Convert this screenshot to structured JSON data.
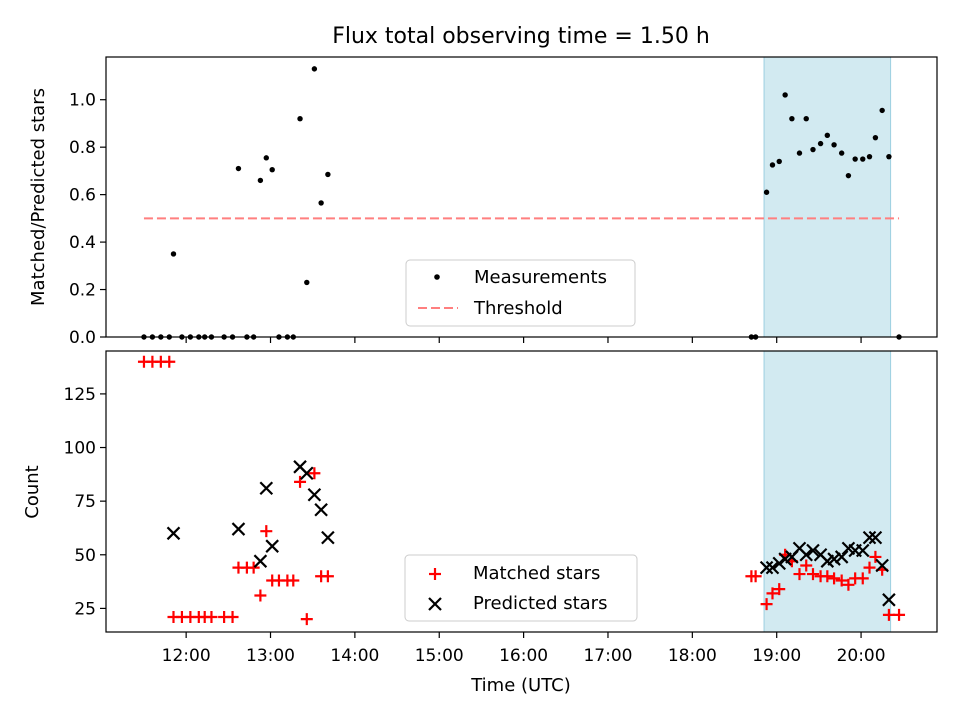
{
  "title": "Flux total observing time = 1.50 h",
  "colors": {
    "measurement": "#000000",
    "threshold": "#ff7f7f",
    "matched": "#ff0000",
    "predicted": "#000000",
    "highlight": "#add8e6"
  },
  "chart_data": [
    {
      "type": "scatter",
      "ylabel": "Matched/Predicted stars",
      "xlabel": "",
      "xlim": [
        11.05,
        20.9
      ],
      "ylim": [
        0.0,
        1.18
      ],
      "yticks": [
        0.0,
        0.2,
        0.4,
        0.6,
        0.8,
        1.0
      ],
      "ytick_labels": [
        "0.0",
        "0.2",
        "0.4",
        "0.6",
        "0.8",
        "1.0"
      ],
      "highlight_span": [
        18.85,
        20.35
      ],
      "legend": {
        "position": "lower-center",
        "entries": [
          "Measurements",
          "Threshold"
        ]
      },
      "threshold": {
        "name": "Threshold",
        "value": 0.5,
        "x_range": [
          11.5,
          20.45
        ]
      },
      "series": [
        {
          "name": "Measurements",
          "marker": "dot",
          "points": [
            [
              11.5,
              0.0
            ],
            [
              11.6,
              0.0
            ],
            [
              11.7,
              0.0
            ],
            [
              11.8,
              0.0
            ],
            [
              11.85,
              0.35
            ],
            [
              11.95,
              0.0
            ],
            [
              12.05,
              0.0
            ],
            [
              12.15,
              0.0
            ],
            [
              12.22,
              0.0
            ],
            [
              12.3,
              0.0
            ],
            [
              12.45,
              0.0
            ],
            [
              12.55,
              0.0
            ],
            [
              12.62,
              0.71
            ],
            [
              12.72,
              0.0
            ],
            [
              12.8,
              0.0
            ],
            [
              12.88,
              0.66
            ],
            [
              12.95,
              0.755
            ],
            [
              13.02,
              0.705
            ],
            [
              13.1,
              0.0
            ],
            [
              13.2,
              0.0
            ],
            [
              13.27,
              0.0
            ],
            [
              13.35,
              0.92
            ],
            [
              13.43,
              0.23
            ],
            [
              13.52,
              1.13
            ],
            [
              13.6,
              0.565
            ],
            [
              13.68,
              0.685
            ],
            [
              18.7,
              0.0
            ],
            [
              18.75,
              0.0
            ],
            [
              18.88,
              0.61
            ],
            [
              18.95,
              0.725
            ],
            [
              19.03,
              0.74
            ],
            [
              19.1,
              1.02
            ],
            [
              19.18,
              0.92
            ],
            [
              19.27,
              0.775
            ],
            [
              19.35,
              0.92
            ],
            [
              19.43,
              0.79
            ],
            [
              19.52,
              0.815
            ],
            [
              19.6,
              0.85
            ],
            [
              19.68,
              0.81
            ],
            [
              19.77,
              0.775
            ],
            [
              19.85,
              0.68
            ],
            [
              19.93,
              0.75
            ],
            [
              20.02,
              0.75
            ],
            [
              20.1,
              0.76
            ],
            [
              20.17,
              0.84
            ],
            [
              20.25,
              0.955
            ],
            [
              20.33,
              0.76
            ],
            [
              20.45,
              0.0
            ]
          ]
        }
      ]
    },
    {
      "type": "scatter",
      "ylabel": "Count",
      "xlabel": "Time (UTC)",
      "xlim": [
        11.05,
        20.9
      ],
      "ylim": [
        14,
        145
      ],
      "yticks": [
        25,
        50,
        75,
        100,
        125
      ],
      "ytick_labels": [
        "25",
        "50",
        "75",
        "100",
        "125"
      ],
      "xticks": [
        12,
        13,
        14,
        15,
        16,
        17,
        18,
        19,
        20
      ],
      "xtick_labels": [
        "12:00",
        "13:00",
        "14:00",
        "15:00",
        "16:00",
        "17:00",
        "18:00",
        "19:00",
        "20:00"
      ],
      "highlight_span": [
        18.85,
        20.35
      ],
      "legend": {
        "position": "lower-center",
        "entries": [
          "Matched stars",
          "Predicted stars"
        ]
      },
      "series": [
        {
          "name": "Matched stars",
          "marker": "plus",
          "points": [
            [
              11.5,
              140
            ],
            [
              11.6,
              140
            ],
            [
              11.7,
              140
            ],
            [
              11.8,
              140
            ],
            [
              11.85,
              21
            ],
            [
              11.95,
              21
            ],
            [
              12.05,
              21
            ],
            [
              12.15,
              21
            ],
            [
              12.22,
              21
            ],
            [
              12.3,
              21
            ],
            [
              12.45,
              21
            ],
            [
              12.55,
              21
            ],
            [
              12.62,
              44
            ],
            [
              12.72,
              44
            ],
            [
              12.8,
              44
            ],
            [
              12.88,
              31
            ],
            [
              12.95,
              61
            ],
            [
              13.02,
              38
            ],
            [
              13.1,
              38
            ],
            [
              13.2,
              38
            ],
            [
              13.27,
              38
            ],
            [
              13.35,
              84
            ],
            [
              13.43,
              20
            ],
            [
              13.52,
              88
            ],
            [
              13.6,
              40
            ],
            [
              13.68,
              40
            ],
            [
              18.7,
              40
            ],
            [
              18.75,
              40
            ],
            [
              18.88,
              27
            ],
            [
              18.95,
              32
            ],
            [
              19.03,
              34
            ],
            [
              19.1,
              50
            ],
            [
              19.18,
              47
            ],
            [
              19.27,
              41
            ],
            [
              19.35,
              45
            ],
            [
              19.43,
              41
            ],
            [
              19.52,
              40
            ],
            [
              19.6,
              40
            ],
            [
              19.68,
              39
            ],
            [
              19.77,
              38
            ],
            [
              19.85,
              36
            ],
            [
              19.93,
              39
            ],
            [
              20.02,
              39
            ],
            [
              20.1,
              44
            ],
            [
              20.17,
              49
            ],
            [
              20.25,
              43
            ],
            [
              20.33,
              22
            ],
            [
              20.45,
              22
            ]
          ]
        },
        {
          "name": "Predicted stars",
          "marker": "x",
          "points": [
            [
              11.85,
              60
            ],
            [
              12.62,
              62
            ],
            [
              12.88,
              47
            ],
            [
              12.95,
              81
            ],
            [
              13.02,
              54
            ],
            [
              13.35,
              91
            ],
            [
              13.43,
              88
            ],
            [
              13.52,
              78
            ],
            [
              13.6,
              71
            ],
            [
              13.68,
              58
            ],
            [
              18.88,
              44
            ],
            [
              18.95,
              44
            ],
            [
              19.03,
              46
            ],
            [
              19.1,
              48
            ],
            [
              19.18,
              49
            ],
            [
              19.27,
              53
            ],
            [
              19.35,
              50
            ],
            [
              19.43,
              52
            ],
            [
              19.52,
              50
            ],
            [
              19.6,
              47
            ],
            [
              19.68,
              48
            ],
            [
              19.77,
              49
            ],
            [
              19.85,
              53
            ],
            [
              19.93,
              52
            ],
            [
              20.02,
              52
            ],
            [
              20.1,
              58
            ],
            [
              20.17,
              58
            ],
            [
              20.25,
              45
            ],
            [
              20.33,
              29
            ]
          ]
        }
      ]
    }
  ]
}
